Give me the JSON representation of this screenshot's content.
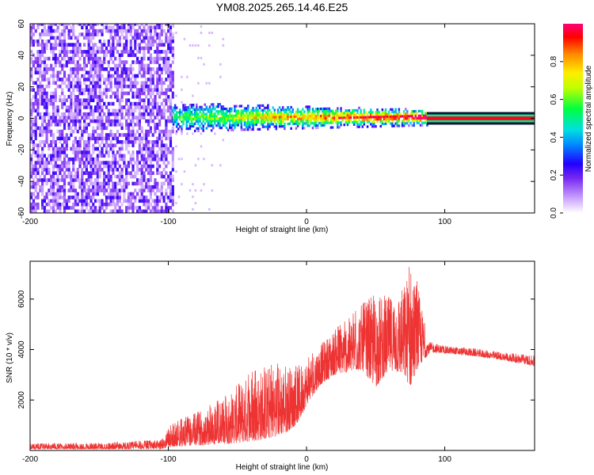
{
  "title": "YM08.2025.265.14.46.E25",
  "chart_data": [
    {
      "type": "heatmap",
      "name": "spectrogram",
      "xlabel": "Height of straight line (km)",
      "ylabel": "Frequency (Hz)",
      "xlim": [
        -200,
        165
      ],
      "ylim": [
        -60,
        60
      ],
      "xticks": [
        -200,
        -100,
        0,
        100
      ],
      "yticks": [
        -60,
        -40,
        -20,
        0,
        20,
        40,
        60
      ],
      "colorbar": {
        "label": "Normalized spectral amplitude",
        "range": [
          0,
          1
        ],
        "ticks": [
          0.0,
          0.2,
          0.4,
          0.6,
          0.8
        ]
      },
      "regions": [
        {
          "x": [
            -200,
            -97
          ],
          "description": "broadband noise across all frequencies"
        },
        {
          "x": [
            -97,
            87
          ],
          "frequency_center": 0,
          "description": "narrow band near 0 Hz, amplitude rising with height"
        },
        {
          "x": [
            87,
            165
          ],
          "frequency_center": 0,
          "description": "steady high-amplitude tone near 0 Hz"
        }
      ]
    },
    {
      "type": "line",
      "name": "snr",
      "xlabel": "Height of straight line (km)",
      "ylabel": "SNR (10 * v/v)",
      "xlim": [
        -200,
        165
      ],
      "ylim": [
        0,
        7500
      ],
      "xticks": [
        -200,
        -100,
        0,
        100
      ],
      "yticks": [
        2000,
        4000,
        6000
      ],
      "color": "#ee3333",
      "envelope": {
        "x": [
          -200,
          -150,
          -105,
          -97,
          -80,
          -60,
          -40,
          -25,
          -15,
          -10,
          -5,
          0,
          10,
          20,
          30,
          40,
          50,
          60,
          70,
          75,
          80,
          85,
          88,
          90,
          100,
          120,
          140,
          165
        ],
        "low": [
          50,
          50,
          60,
          150,
          200,
          250,
          350,
          500,
          700,
          900,
          1200,
          1800,
          2600,
          3000,
          3100,
          3200,
          2500,
          3200,
          3000,
          2500,
          3200,
          3600,
          3800,
          3900,
          3850,
          3750,
          3600,
          3350
        ],
        "high": [
          280,
          300,
          420,
          1100,
          1500,
          2100,
          3100,
          3400,
          3500,
          3300,
          3400,
          3600,
          4200,
          4800,
          5200,
          5800,
          6200,
          6100,
          6500,
          7400,
          6700,
          5200,
          4300,
          4300,
          4150,
          4050,
          3900,
          3750
        ]
      }
    }
  ]
}
